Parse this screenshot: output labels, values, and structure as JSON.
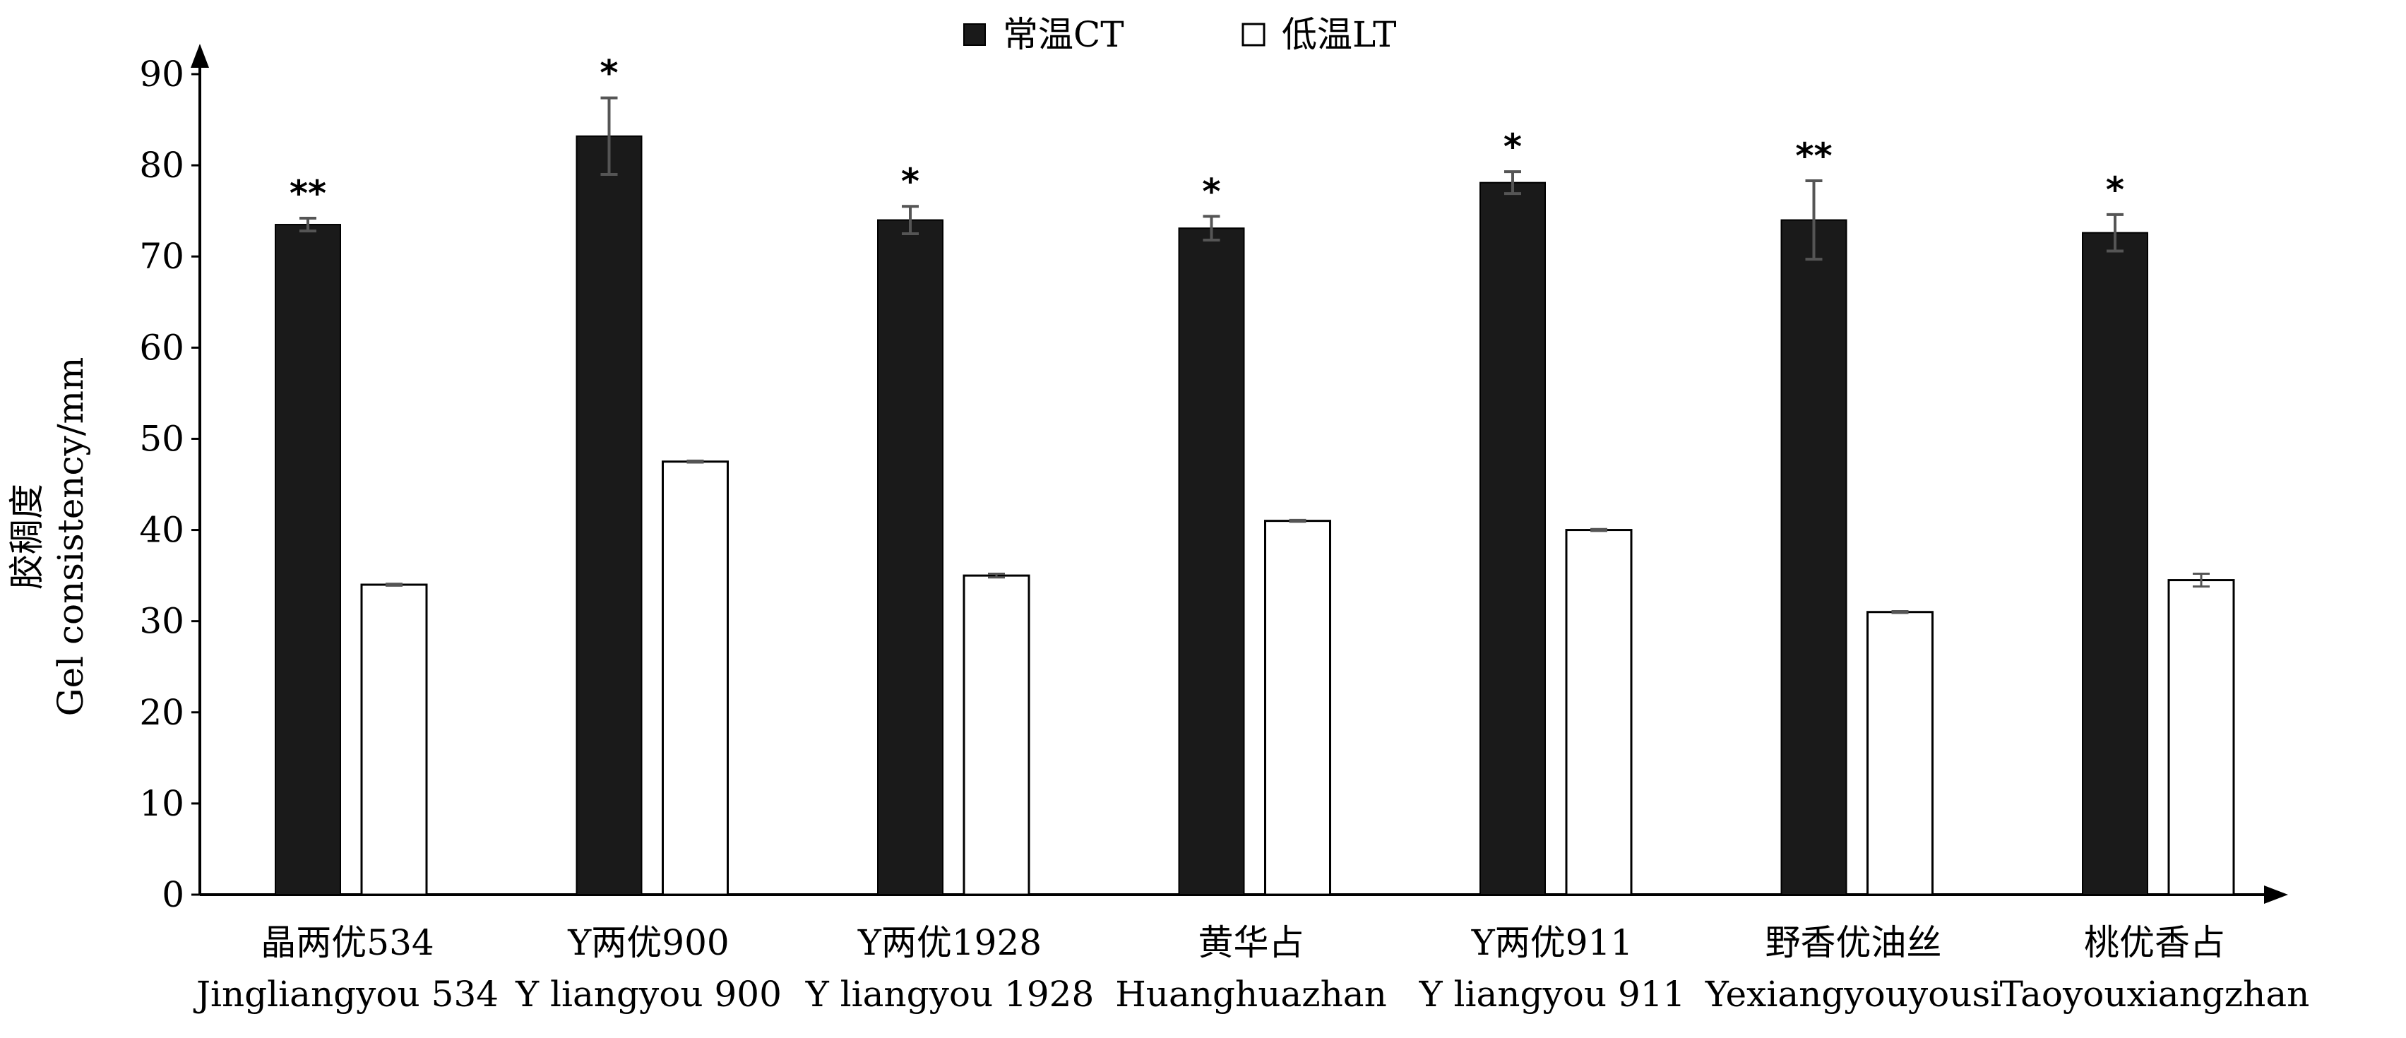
{
  "chart_data": {
    "type": "bar",
    "title": "",
    "ylabel": "胶稠度",
    "ylabel_en": "Gel consistency/mm",
    "xlabel": "",
    "ylim": [
      0,
      90
    ],
    "y_ticks": [
      "0",
      "10",
      "20",
      "30",
      "40",
      "50",
      "60",
      "70",
      "80",
      "90"
    ],
    "grid": false,
    "legend_position": "top-center",
    "categories": [
      {
        "cn": "晶两优534",
        "en": "Jingliangyou 534"
      },
      {
        "cn": "Y两优900",
        "en": "Y liangyou 900"
      },
      {
        "cn": "Y两优1928",
        "en": "Y liangyou 1928"
      },
      {
        "cn": "黄华占",
        "en": "Huanghuazhan"
      },
      {
        "cn": "Y两优911",
        "en": "Y liangyou 911"
      },
      {
        "cn": "野香优油丝",
        "en": "Yexiangyouyousi"
      },
      {
        "cn": "桃优香占",
        "en": "Taoyouxiangzhan"
      }
    ],
    "series": [
      {
        "name": "常温CT",
        "color": "#1a1a1a",
        "values": [
          73.5,
          83.2,
          74.0,
          73.1,
          78.1,
          74.0,
          72.6
        ],
        "errors": [
          0.7,
          4.2,
          1.5,
          1.3,
          1.2,
          4.3,
          2.0
        ]
      },
      {
        "name": "低温LT",
        "color": "#ffffff",
        "values": [
          34.0,
          47.5,
          35.0,
          41.0,
          40.0,
          31.0,
          34.5
        ],
        "errors": [
          0.1,
          0.1,
          0.2,
          0.1,
          0.1,
          0.1,
          0.7
        ]
      }
    ],
    "significance": [
      "**",
      "*",
      "*",
      "*",
      "*",
      "**",
      "*"
    ]
  }
}
